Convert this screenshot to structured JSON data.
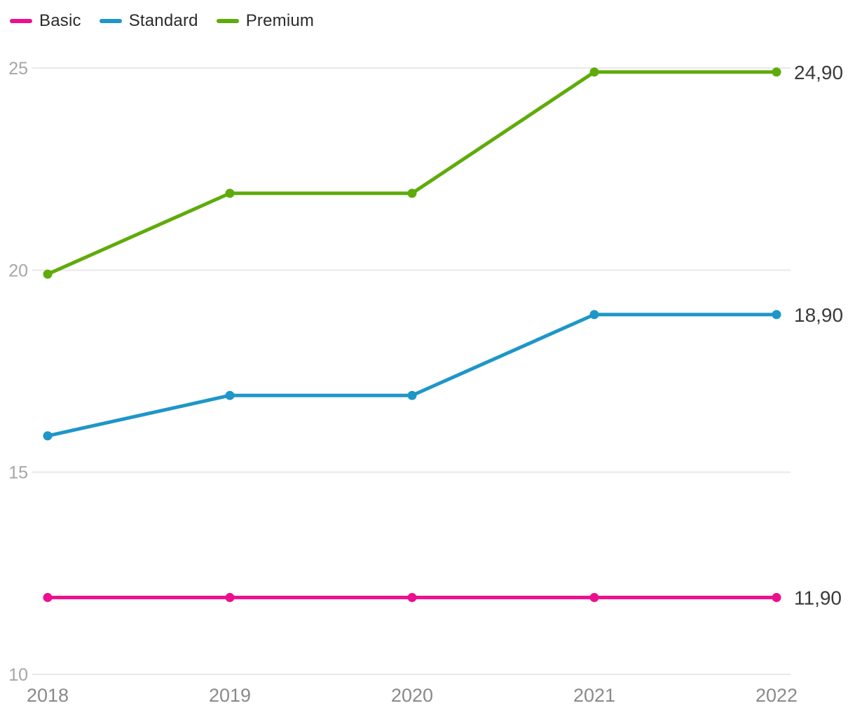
{
  "chart_data": {
    "type": "line",
    "x": [
      "2018",
      "2019",
      "2020",
      "2021",
      "2022"
    ],
    "series": [
      {
        "name": "Basic",
        "color": "#ec0f8c",
        "values": [
          11.9,
          11.9,
          11.9,
          11.9,
          11.9
        ],
        "end_label": "11,90"
      },
      {
        "name": "Standard",
        "color": "#1e96c8",
        "values": [
          15.9,
          16.9,
          16.9,
          18.9,
          18.9
        ],
        "end_label": "18,90"
      },
      {
        "name": "Premium",
        "color": "#5fab0a",
        "values": [
          19.9,
          21.9,
          21.9,
          24.9,
          24.9
        ],
        "end_label": "24,90"
      }
    ],
    "title": "",
    "xlabel": "",
    "ylabel": "",
    "ylim": [
      10,
      25
    ],
    "yticks": [
      10,
      15,
      20,
      25
    ],
    "grid": "horizontal",
    "legend_position": "top-left"
  },
  "colors": {
    "background": "#ffffff",
    "grid": "#e9e9e9",
    "y_tick_label": "#a6a6a6",
    "x_tick_label": "#8a8a8a",
    "end_label": "#3a3a3a",
    "legend_text": "#2b2b2b"
  }
}
